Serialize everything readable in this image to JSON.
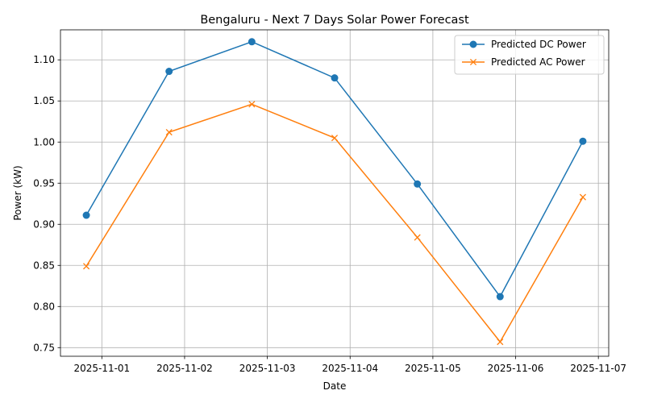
{
  "chart_data": {
    "type": "line",
    "title": "Bengaluru - Next 7 Days Solar Power Forecast",
    "xlabel": "Date",
    "ylabel": "Power (kW)",
    "x": [
      "2025-10-31T19:30",
      "2025-11-01T19:30",
      "2025-11-02T19:30",
      "2025-11-03T19:30",
      "2025-11-04T19:30",
      "2025-11-05T19:30",
      "2025-11-06T19:30"
    ],
    "xticks": [
      "2025-11-01",
      "2025-11-02",
      "2025-11-03",
      "2025-11-04",
      "2025-11-05",
      "2025-11-06",
      "2025-11-07"
    ],
    "xlim": [
      "2025-10-31T12:00",
      "2025-11-07T03:00"
    ],
    "yticks": [
      "0.75",
      "0.80",
      "0.85",
      "0.90",
      "0.95",
      "1.00",
      "1.05",
      "1.10"
    ],
    "ylim": [
      0.7395,
      1.1365
    ],
    "grid": true,
    "legend_position": "top-right",
    "series": [
      {
        "name": "Predicted DC Power",
        "color": "#1f77b4",
        "marker": "circle",
        "values": [
          0.911,
          1.086,
          1.122,
          1.078,
          0.949,
          0.812,
          1.001
        ]
      },
      {
        "name": "Predicted AC Power",
        "color": "#ff7f0e",
        "marker": "x",
        "values": [
          0.849,
          1.012,
          1.046,
          1.005,
          0.884,
          0.757,
          0.933
        ]
      }
    ]
  }
}
